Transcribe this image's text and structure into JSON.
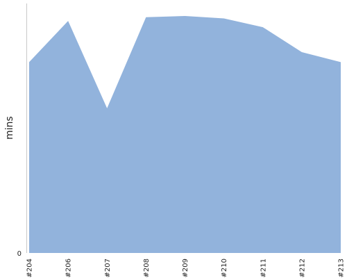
{
  "chart_data": {
    "type": "area",
    "categories": [
      "#204",
      "#206",
      "#207",
      "#208",
      "#209",
      "#210",
      "#211",
      "#212",
      "#213"
    ],
    "series": [
      {
        "values": [
          76.5,
          93.0,
          58.0,
          94.5,
          95.0,
          94.0,
          90.5,
          80.5,
          76.5
        ]
      }
    ],
    "ylabel": "mins",
    "xlabel": "",
    "ylim": [
      0,
      100
    ],
    "yticks": [
      "0"
    ],
    "grid": false,
    "colors": {
      "fill": "#92b3dc",
      "axis": "#c8c8c8"
    }
  }
}
